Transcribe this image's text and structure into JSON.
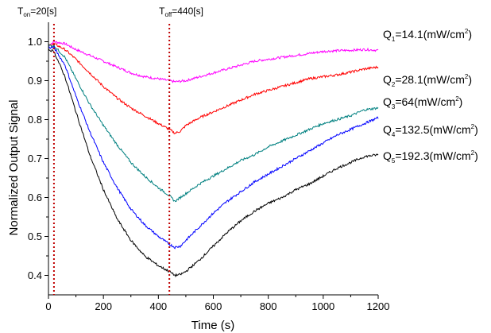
{
  "chart_data": {
    "type": "line",
    "xlabel": "Time (s)",
    "ylabel": "Normalized Output Signal",
    "xlim": [
      0,
      1200
    ],
    "ylim": [
      0.35,
      1.05
    ],
    "x_ticks": [
      0,
      200,
      400,
      600,
      800,
      1000,
      1200
    ],
    "y_ticks": [
      0.4,
      0.5,
      0.6,
      0.7,
      0.8,
      0.9,
      1.0
    ],
    "grid": false,
    "legend_placement": "right (labels beside line ends)",
    "markers": [
      {
        "sym": "T",
        "sub": "on",
        "text": "=20[s]",
        "x": 20,
        "color": "#c00000"
      },
      {
        "sym": "T",
        "sub": "off",
        "text": "=440[s]",
        "x": 440,
        "color": "#c00000"
      }
    ],
    "series": [
      {
        "name": "Q1=14.1(mW/cm2)",
        "label": {
          "sym": "Q",
          "sub": "1",
          "text": "=14.1(mW/cm",
          "sup": "2",
          "end": ")"
        },
        "color": "#ff00ff",
        "points": [
          [
            0,
            0.99
          ],
          [
            20,
            1.0
          ],
          [
            60,
            0.995
          ],
          [
            100,
            0.98
          ],
          [
            150,
            0.965
          ],
          [
            200,
            0.95
          ],
          [
            250,
            0.935
          ],
          [
            300,
            0.92
          ],
          [
            350,
            0.91
          ],
          [
            400,
            0.905
          ],
          [
            440,
            0.9
          ],
          [
            460,
            0.897
          ],
          [
            500,
            0.9
          ],
          [
            550,
            0.91
          ],
          [
            600,
            0.92
          ],
          [
            650,
            0.93
          ],
          [
            700,
            0.94
          ],
          [
            750,
            0.95
          ],
          [
            800,
            0.955
          ],
          [
            850,
            0.96
          ],
          [
            900,
            0.965
          ],
          [
            950,
            0.97
          ],
          [
            1000,
            0.975
          ],
          [
            1050,
            0.977
          ],
          [
            1100,
            0.978
          ],
          [
            1150,
            0.98
          ],
          [
            1200,
            0.978
          ]
        ]
      },
      {
        "name": "Q2=28.1(mW/cm2)",
        "label": {
          "sym": "Q",
          "sub": "2",
          "text": "=28.1(mW/cm",
          "sup": "2",
          "end": ")"
        },
        "color": "#ff0000",
        "points": [
          [
            0,
            0.99
          ],
          [
            20,
            0.995
          ],
          [
            60,
            0.98
          ],
          [
            100,
            0.955
          ],
          [
            150,
            0.92
          ],
          [
            200,
            0.885
          ],
          [
            250,
            0.855
          ],
          [
            300,
            0.83
          ],
          [
            350,
            0.81
          ],
          [
            400,
            0.79
          ],
          [
            440,
            0.775
          ],
          [
            460,
            0.765
          ],
          [
            480,
            0.77
          ],
          [
            500,
            0.785
          ],
          [
            550,
            0.805
          ],
          [
            600,
            0.82
          ],
          [
            650,
            0.835
          ],
          [
            700,
            0.85
          ],
          [
            750,
            0.865
          ],
          [
            800,
            0.875
          ],
          [
            850,
            0.885
          ],
          [
            900,
            0.895
          ],
          [
            950,
            0.905
          ],
          [
            1000,
            0.91
          ],
          [
            1050,
            0.915
          ],
          [
            1100,
            0.922
          ],
          [
            1150,
            0.93
          ],
          [
            1200,
            0.935
          ]
        ]
      },
      {
        "name": "Q3=64(mW/cm2)",
        "label": {
          "sym": "Q",
          "sub": "3",
          "text": "=64(mW/cm",
          "sup": "2",
          "end": ")"
        },
        "color": "#008080",
        "points": [
          [
            0,
            0.99
          ],
          [
            20,
            0.99
          ],
          [
            60,
            0.96
          ],
          [
            100,
            0.905
          ],
          [
            150,
            0.84
          ],
          [
            200,
            0.785
          ],
          [
            250,
            0.735
          ],
          [
            300,
            0.69
          ],
          [
            350,
            0.655
          ],
          [
            400,
            0.625
          ],
          [
            440,
            0.605
          ],
          [
            460,
            0.59
          ],
          [
            480,
            0.6
          ],
          [
            500,
            0.61
          ],
          [
            550,
            0.635
          ],
          [
            600,
            0.655
          ],
          [
            650,
            0.675
          ],
          [
            700,
            0.695
          ],
          [
            750,
            0.71
          ],
          [
            800,
            0.73
          ],
          [
            850,
            0.745
          ],
          [
            900,
            0.76
          ],
          [
            950,
            0.775
          ],
          [
            1000,
            0.79
          ],
          [
            1050,
            0.8
          ],
          [
            1100,
            0.81
          ],
          [
            1150,
            0.825
          ],
          [
            1200,
            0.83
          ]
        ]
      },
      {
        "name": "Q4=132.5(mW/cm2)",
        "label": {
          "sym": "Q",
          "sub": "4",
          "text": "=132.5(mW/cm",
          "sup": "2",
          "end": ")"
        },
        "color": "#0000ff",
        "points": [
          [
            0,
            0.985
          ],
          [
            20,
            0.985
          ],
          [
            60,
            0.94
          ],
          [
            100,
            0.86
          ],
          [
            150,
            0.77
          ],
          [
            200,
            0.69
          ],
          [
            250,
            0.625
          ],
          [
            300,
            0.57
          ],
          [
            350,
            0.53
          ],
          [
            400,
            0.5
          ],
          [
            440,
            0.48
          ],
          [
            460,
            0.472
          ],
          [
            480,
            0.475
          ],
          [
            500,
            0.49
          ],
          [
            550,
            0.525
          ],
          [
            600,
            0.56
          ],
          [
            650,
            0.59
          ],
          [
            700,
            0.615
          ],
          [
            750,
            0.64
          ],
          [
            800,
            0.66
          ],
          [
            850,
            0.68
          ],
          [
            900,
            0.7
          ],
          [
            950,
            0.72
          ],
          [
            1000,
            0.74
          ],
          [
            1050,
            0.76
          ],
          [
            1100,
            0.775
          ],
          [
            1150,
            0.79
          ],
          [
            1200,
            0.805
          ]
        ]
      },
      {
        "name": "Q5=192.3(mW/cm2)",
        "label": {
          "sym": "Q",
          "sub": "5",
          "text": "=192.3(mW/cm",
          "sup": "2",
          "end": ")"
        },
        "color": "#000000",
        "points": [
          [
            0,
            0.98
          ],
          [
            20,
            0.975
          ],
          [
            60,
            0.91
          ],
          [
            100,
            0.82
          ],
          [
            150,
            0.71
          ],
          [
            200,
            0.62
          ],
          [
            250,
            0.545
          ],
          [
            300,
            0.49
          ],
          [
            350,
            0.45
          ],
          [
            400,
            0.425
          ],
          [
            440,
            0.41
          ],
          [
            460,
            0.4
          ],
          [
            480,
            0.402
          ],
          [
            500,
            0.41
          ],
          [
            550,
            0.44
          ],
          [
            600,
            0.475
          ],
          [
            650,
            0.51
          ],
          [
            700,
            0.54
          ],
          [
            750,
            0.565
          ],
          [
            800,
            0.585
          ],
          [
            850,
            0.6
          ],
          [
            900,
            0.62
          ],
          [
            950,
            0.635
          ],
          [
            1000,
            0.655
          ],
          [
            1050,
            0.675
          ],
          [
            1100,
            0.69
          ],
          [
            1150,
            0.705
          ],
          [
            1200,
            0.71
          ]
        ]
      }
    ]
  }
}
